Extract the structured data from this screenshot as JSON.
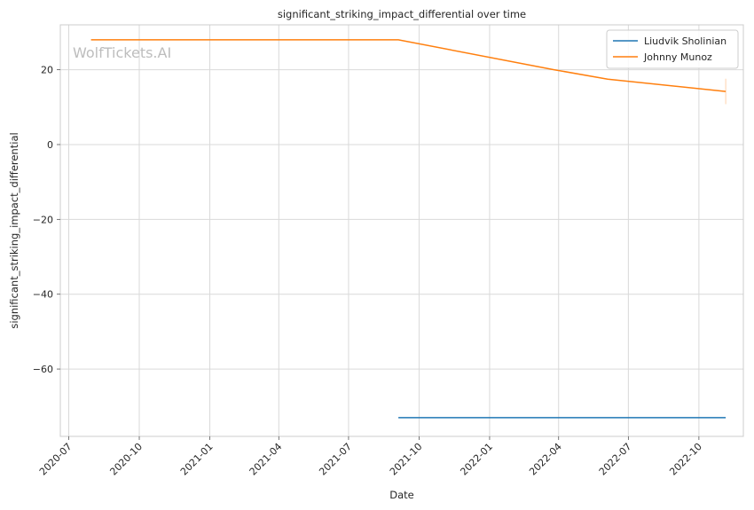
{
  "watermark": "WolfTickets.AI",
  "chart_data": {
    "type": "line",
    "title": "significant_striking_impact_differential over time",
    "xlabel": "Date",
    "ylabel": "significant_striking_impact_differential",
    "x_ticks": [
      "2020-07",
      "2020-10",
      "2021-01",
      "2021-04",
      "2021-07",
      "2021-10",
      "2022-01",
      "2022-04",
      "2022-07",
      "2022-10"
    ],
    "y_ticks": [
      20,
      0,
      -20,
      -40,
      -60
    ],
    "xlim": [
      "2020-06-20",
      "2022-11-28"
    ],
    "ylim": [
      -78,
      32
    ],
    "grid": true,
    "legend_position": "top-right",
    "series": [
      {
        "name": "Liudvik Sholinian",
        "color": "#1f77b4",
        "points": [
          {
            "x": "2021-09-04",
            "y": -73.0
          },
          {
            "x": "2022-11-05",
            "y": -73.0
          }
        ]
      },
      {
        "name": "Johnny Munoz",
        "color": "#ff7f0e",
        "points": [
          {
            "x": "2020-07-30",
            "y": 28.0
          },
          {
            "x": "2021-09-04",
            "y": 28.0
          },
          {
            "x": "2022-03-26",
            "y": 20.0
          },
          {
            "x": "2022-06-04",
            "y": 17.5
          },
          {
            "x": "2022-11-05",
            "y": 14.2
          }
        ],
        "error_bar": {
          "x": "2022-11-05",
          "low": 10.8,
          "high": 17.6
        }
      }
    ]
  }
}
